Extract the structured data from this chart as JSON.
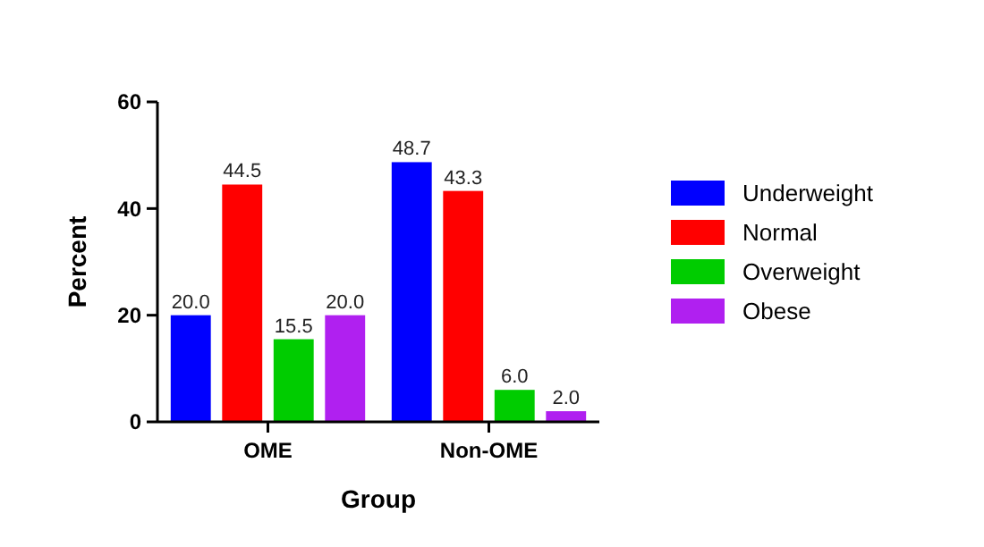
{
  "chart_data": {
    "type": "bar",
    "xlabel": "Group",
    "ylabel": "Percent",
    "categories": [
      "OME",
      "Non-OME"
    ],
    "series": [
      {
        "name": "Underweight",
        "color": "#0000ff",
        "values": [
          20.0,
          48.7
        ],
        "value_labels": [
          "20.0",
          "48.7"
        ]
      },
      {
        "name": "Normal",
        "color": "#ff0000",
        "values": [
          44.5,
          43.3
        ],
        "value_labels": [
          "44.5",
          "43.3"
        ]
      },
      {
        "name": "Overweight",
        "color": "#00cc00",
        "values": [
          15.5,
          6.0
        ],
        "value_labels": [
          "15.5",
          "6.0"
        ]
      },
      {
        "name": "Obese",
        "color": "#b020f0",
        "values": [
          20.0,
          2.0
        ],
        "value_labels": [
          "20.0",
          "2.0"
        ]
      }
    ],
    "ylim": [
      0,
      60
    ],
    "yticks": [
      0,
      20,
      40,
      60
    ],
    "legend": "right"
  }
}
